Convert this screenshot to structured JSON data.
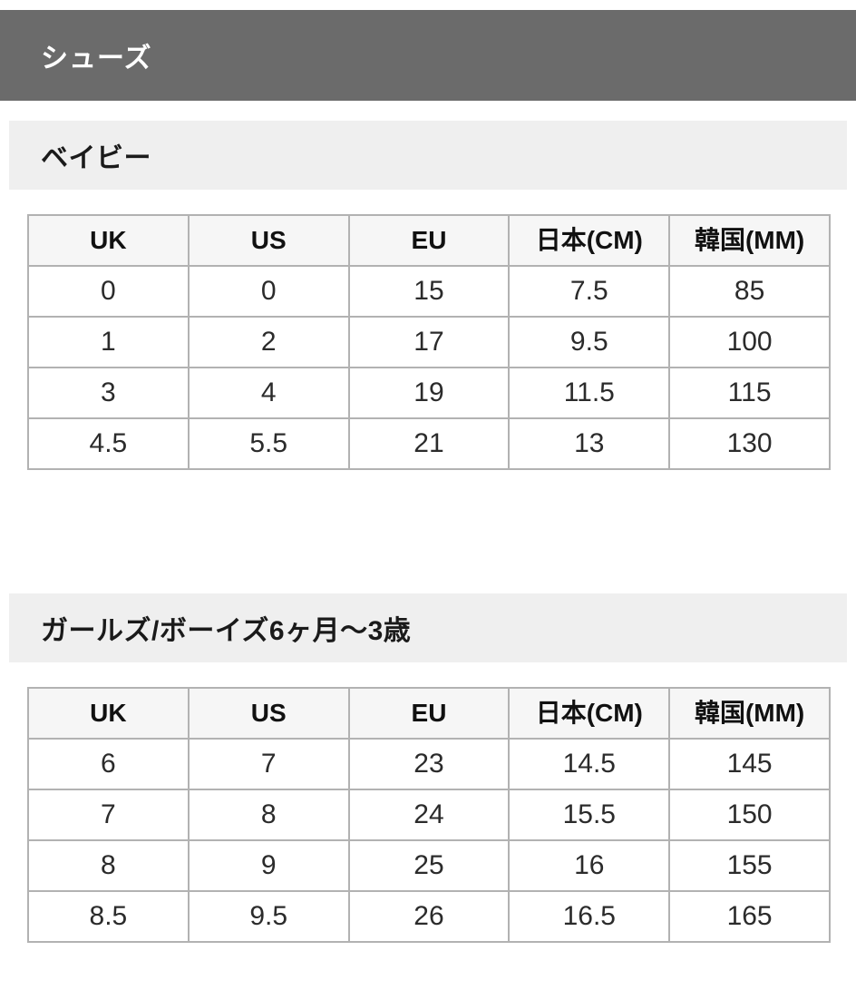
{
  "header": {
    "title": "シューズ"
  },
  "sections": [
    {
      "heading": "ベイビー",
      "table": {
        "headers": [
          "UK",
          "US",
          "EU",
          "日本(CM)",
          "韓国(MM)"
        ],
        "rows": [
          [
            "0",
            "0",
            "15",
            "7.5",
            "85"
          ],
          [
            "1",
            "2",
            "17",
            "9.5",
            "100"
          ],
          [
            "3",
            "4",
            "19",
            "11.5",
            "115"
          ],
          [
            "4.5",
            "5.5",
            "21",
            "13",
            "130"
          ]
        ]
      }
    },
    {
      "heading": "ガールズ/ボーイズ6ヶ月～3歳",
      "table": {
        "headers": [
          "UK",
          "US",
          "EU",
          "日本(CM)",
          "韓国(MM)"
        ],
        "rows": [
          [
            "6",
            "7",
            "23",
            "14.5",
            "145"
          ],
          [
            "7",
            "8",
            "24",
            "15.5",
            "150"
          ],
          [
            "8",
            "9",
            "25",
            "16",
            "155"
          ],
          [
            "8.5",
            "9.5",
            "26",
            "16.5",
            "165"
          ]
        ]
      }
    }
  ],
  "colors": {
    "header_bar_bg": "#6b6b6b",
    "header_bar_text": "#ffffff",
    "section_band_bg": "#efefef",
    "table_header_bg": "#f6f6f6",
    "table_border": "#b2b2b2",
    "body_text": "#2b2b2b"
  }
}
